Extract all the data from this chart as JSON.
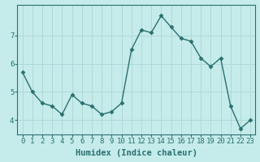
{
  "x": [
    0,
    1,
    2,
    3,
    4,
    5,
    6,
    7,
    8,
    9,
    10,
    11,
    12,
    13,
    14,
    15,
    16,
    17,
    18,
    19,
    20,
    21,
    22,
    23
  ],
  "y": [
    5.7,
    5.0,
    4.6,
    4.5,
    4.2,
    4.9,
    4.6,
    4.5,
    4.2,
    4.3,
    4.6,
    6.5,
    7.2,
    7.1,
    7.7,
    7.3,
    6.9,
    6.8,
    6.2,
    5.9,
    6.2,
    4.5,
    3.7,
    4.0
  ],
  "line_color": "#2a7070",
  "marker": "D",
  "marker_size": 2.5,
  "bg_color": "#c5ecea",
  "grid_color": "#b0d8d8",
  "xlabel": "Humidex (Indice chaleur)",
  "ylim": [
    3.5,
    8.1
  ],
  "xlim": [
    -0.5,
    23.5
  ],
  "yticks": [
    4,
    5,
    6,
    7
  ],
  "xticks": [
    0,
    1,
    2,
    3,
    4,
    5,
    6,
    7,
    8,
    9,
    10,
    11,
    12,
    13,
    14,
    15,
    16,
    17,
    18,
    19,
    20,
    21,
    22,
    23
  ],
  "xtick_labels": [
    "0",
    "1",
    "2",
    "3",
    "4",
    "5",
    "6",
    "7",
    "8",
    "9",
    "10",
    "11",
    "12",
    "13",
    "14",
    "15",
    "16",
    "17",
    "18",
    "19",
    "20",
    "21",
    "22",
    "23"
  ],
  "tick_font_size": 6.5,
  "xlabel_fontsize": 7.5,
  "line_width": 1.0
}
